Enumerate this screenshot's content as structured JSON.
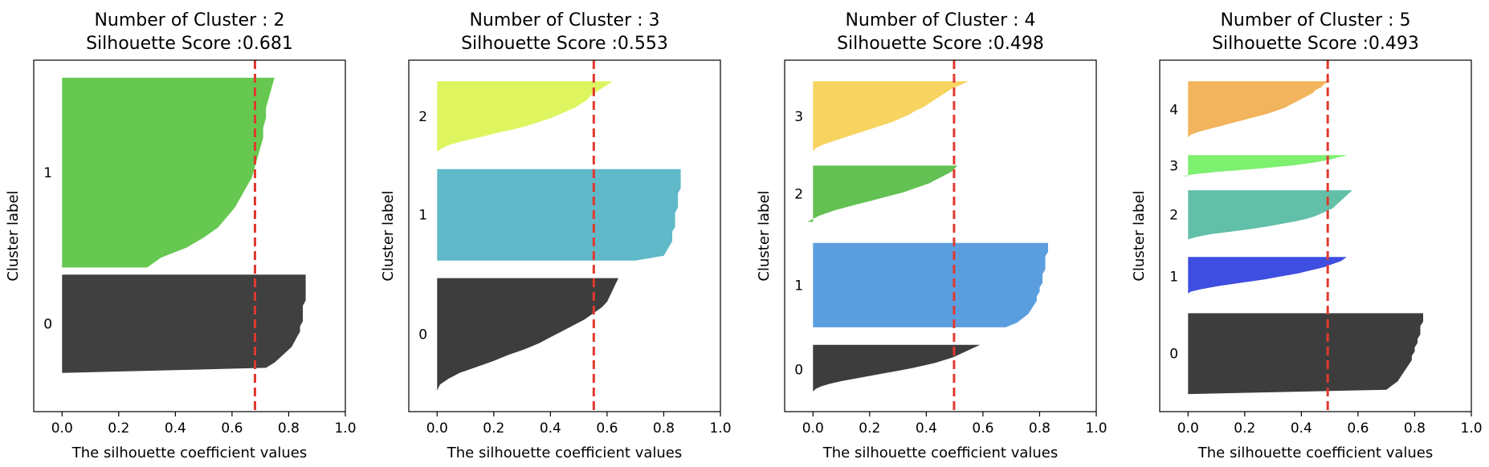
{
  "chart_data": [
    {
      "type": "silhouette",
      "title": "Number of Cluster : 2",
      "subtitle": "Silhouette Score :0.681",
      "xlabel": "The silhouette coefficient values",
      "ylabel": "Cluster label",
      "xlim": [
        -0.1,
        1.0
      ],
      "xticks": [
        "0.0",
        "0.2",
        "0.4",
        "0.6",
        "0.8",
        "1.0"
      ],
      "average_score": 0.681,
      "clusters": [
        {
          "label": "0",
          "color": "#404040",
          "span": [
            0.11,
            0.39
          ],
          "profile": [
            0.86,
            0.86,
            0.86,
            0.86,
            0.86,
            0.86,
            0.85,
            0.85,
            0.85,
            0.85,
            0.84,
            0.84,
            0.83,
            0.82,
            0.81,
            0.79,
            0.77,
            0.75,
            0.72,
            0.0
          ]
        },
        {
          "label": "1",
          "color": "#66c850",
          "span": [
            0.41,
            0.95
          ],
          "profile": [
            0.75,
            0.74,
            0.73,
            0.72,
            0.72,
            0.71,
            0.71,
            0.7,
            0.69,
            0.68,
            0.67,
            0.65,
            0.63,
            0.61,
            0.58,
            0.55,
            0.5,
            0.44,
            0.35,
            0.3
          ]
        }
      ]
    },
    {
      "type": "silhouette",
      "title": "Number of Cluster : 3",
      "subtitle": "Silhouette Score :0.553",
      "xlabel": "The silhouette coefficient values",
      "ylabel": "Cluster label",
      "xlim": [
        -0.1,
        1.0
      ],
      "xticks": [
        "0.0",
        "0.2",
        "0.4",
        "0.6",
        "0.8",
        "1.0"
      ],
      "average_score": 0.553,
      "clusters": [
        {
          "label": "0",
          "color": "#3d3d3d",
          "span": [
            0.06,
            0.38
          ],
          "profile": [
            0.64,
            0.63,
            0.62,
            0.61,
            0.6,
            0.58,
            0.55,
            0.52,
            0.48,
            0.44,
            0.4,
            0.36,
            0.31,
            0.25,
            0.2,
            0.14,
            0.08,
            0.04,
            0.01,
            0.0
          ]
        },
        {
          "label": "1",
          "color": "#5fb9c8",
          "span": [
            0.43,
            0.69
          ],
          "profile": [
            0.86,
            0.86,
            0.86,
            0.86,
            0.86,
            0.85,
            0.85,
            0.85,
            0.85,
            0.84,
            0.84,
            0.84,
            0.84,
            0.83,
            0.83,
            0.83,
            0.82,
            0.81,
            0.8,
            0.7
          ]
        },
        {
          "label": "2",
          "color": "#dff560",
          "span": [
            0.74,
            0.94
          ],
          "profile": [
            0.62,
            0.6,
            0.58,
            0.56,
            0.54,
            0.53,
            0.51,
            0.49,
            0.46,
            0.43,
            0.4,
            0.36,
            0.32,
            0.27,
            0.21,
            0.16,
            0.1,
            0.05,
            0.02,
            0.0
          ]
        }
      ]
    },
    {
      "type": "silhouette",
      "title": "Number of Cluster : 4",
      "subtitle": "Silhouette Score :0.498",
      "xlabel": "The silhouette coefficient values",
      "ylabel": "Cluster label",
      "xlim": [
        -0.1,
        1.0
      ],
      "xticks": [
        "0.0",
        "0.2",
        "0.4",
        "0.6",
        "0.8",
        "1.0"
      ],
      "average_score": 0.498,
      "clusters": [
        {
          "label": "0",
          "color": "#3d3d3d",
          "span": [
            0.05,
            0.19
          ],
          "profile": [
            0.59,
            0.57,
            0.55,
            0.53,
            0.51,
            0.49,
            0.46,
            0.43,
            0.39,
            0.35,
            0.3,
            0.25,
            0.2,
            0.15,
            0.1,
            0.06,
            0.03,
            0.01,
            0.0,
            0.0
          ]
        },
        {
          "label": "1",
          "color": "#5a9ee0",
          "span": [
            0.24,
            0.48
          ],
          "profile": [
            0.83,
            0.83,
            0.83,
            0.82,
            0.82,
            0.82,
            0.82,
            0.81,
            0.81,
            0.81,
            0.8,
            0.8,
            0.79,
            0.79,
            0.78,
            0.77,
            0.76,
            0.74,
            0.72,
            0.68
          ]
        },
        {
          "label": "2",
          "color": "#63c154",
          "span": [
            0.54,
            0.7
          ],
          "profile": [
            0.51,
            0.5,
            0.49,
            0.47,
            0.45,
            0.43,
            0.41,
            0.38,
            0.35,
            0.32,
            0.28,
            0.24,
            0.2,
            0.16,
            0.12,
            0.08,
            0.05,
            0.02,
            0.0,
            -0.02
          ]
        },
        {
          "label": "3",
          "color": "#f7d460",
          "span": [
            0.74,
            0.94
          ],
          "profile": [
            0.55,
            0.52,
            0.49,
            0.47,
            0.45,
            0.43,
            0.41,
            0.39,
            0.36,
            0.34,
            0.31,
            0.28,
            0.24,
            0.2,
            0.16,
            0.12,
            0.08,
            0.04,
            0.01,
            0.0
          ]
        }
      ]
    },
    {
      "type": "silhouette",
      "title": "Number of Cluster : 5",
      "subtitle": "Silhouette Score :0.493",
      "xlabel": "The silhouette coefficient values",
      "ylabel": "Cluster label",
      "xlim": [
        -0.1,
        1.0
      ],
      "xticks": [
        "0.0",
        "0.2",
        "0.4",
        "0.6",
        "0.8",
        "1.0"
      ],
      "average_score": 0.493,
      "clusters": [
        {
          "label": "0",
          "color": "#3d3d3d",
          "span": [
            0.05,
            0.28
          ],
          "profile": [
            0.83,
            0.83,
            0.83,
            0.82,
            0.82,
            0.82,
            0.81,
            0.81,
            0.8,
            0.8,
            0.79,
            0.79,
            0.78,
            0.77,
            0.76,
            0.75,
            0.74,
            0.72,
            0.7,
            0.0
          ]
        },
        {
          "label": "1",
          "color": "#3d4ee0",
          "span": [
            0.33,
            0.44
          ],
          "profile": [
            0.56,
            0.55,
            0.54,
            0.52,
            0.5,
            0.48,
            0.45,
            0.42,
            0.39,
            0.35,
            0.31,
            0.27,
            0.22,
            0.17,
            0.12,
            0.08,
            0.04,
            0.01,
            0.0,
            0.0
          ]
        },
        {
          "label": "2",
          "color": "#62bfa8",
          "span": [
            0.49,
            0.63
          ],
          "profile": [
            0.58,
            0.57,
            0.56,
            0.55,
            0.54,
            0.53,
            0.52,
            0.51,
            0.49,
            0.47,
            0.45,
            0.42,
            0.38,
            0.33,
            0.28,
            0.22,
            0.15,
            0.08,
            0.03,
            0.0
          ]
        },
        {
          "label": "3",
          "color": "#7ef070",
          "span": [
            0.67,
            0.73
          ],
          "profile": [
            0.56,
            0.55,
            0.53,
            0.52,
            0.5,
            0.48,
            0.46,
            0.44,
            0.41,
            0.38,
            0.34,
            0.3,
            0.26,
            0.21,
            0.16,
            0.11,
            0.07,
            0.03,
            0.0,
            -0.02
          ]
        },
        {
          "label": "4",
          "color": "#f2b45c",
          "span": [
            0.78,
            0.94
          ],
          "profile": [
            0.5,
            0.48,
            0.47,
            0.45,
            0.44,
            0.42,
            0.4,
            0.38,
            0.36,
            0.34,
            0.31,
            0.28,
            0.24,
            0.2,
            0.16,
            0.12,
            0.08,
            0.04,
            0.01,
            0.0
          ]
        }
      ]
    }
  ]
}
